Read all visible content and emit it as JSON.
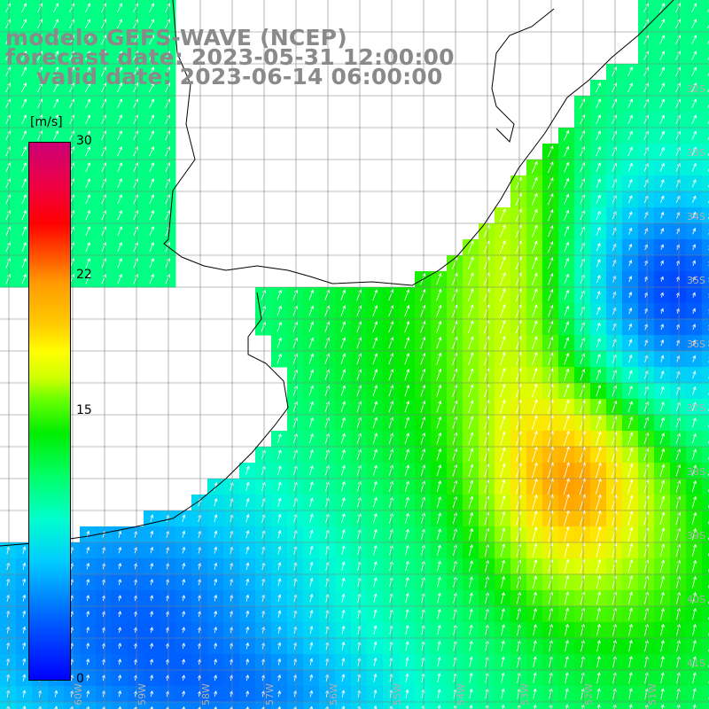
{
  "title": {
    "model": "modelo GEFS-WAVE (NCEP)",
    "forecast": "forecast date: 2023-05-31 12:00:00",
    "valid": "valid date: 2023-06-14 06:00:00"
  },
  "colorbar": {
    "unit": "[m/s]",
    "ticks": [
      "30",
      "22",
      "15",
      "0"
    ],
    "min": 0,
    "max": 30
  },
  "map": {
    "lat_labels": [
      "32S",
      "33S",
      "34S",
      "35S",
      "36S",
      "37S",
      "38S",
      "39S",
      "40S",
      "41S"
    ],
    "lon_labels": [
      "60W",
      "59W",
      "58W",
      "57W",
      "56W",
      "55W",
      "54W",
      "53W",
      "52W",
      "51W"
    ]
  },
  "colors": {
    "land": "#ffffff",
    "grid": "#808080",
    "coast": "#000000",
    "arrow": "#ffffff",
    "title": "#8a8a8a"
  }
}
